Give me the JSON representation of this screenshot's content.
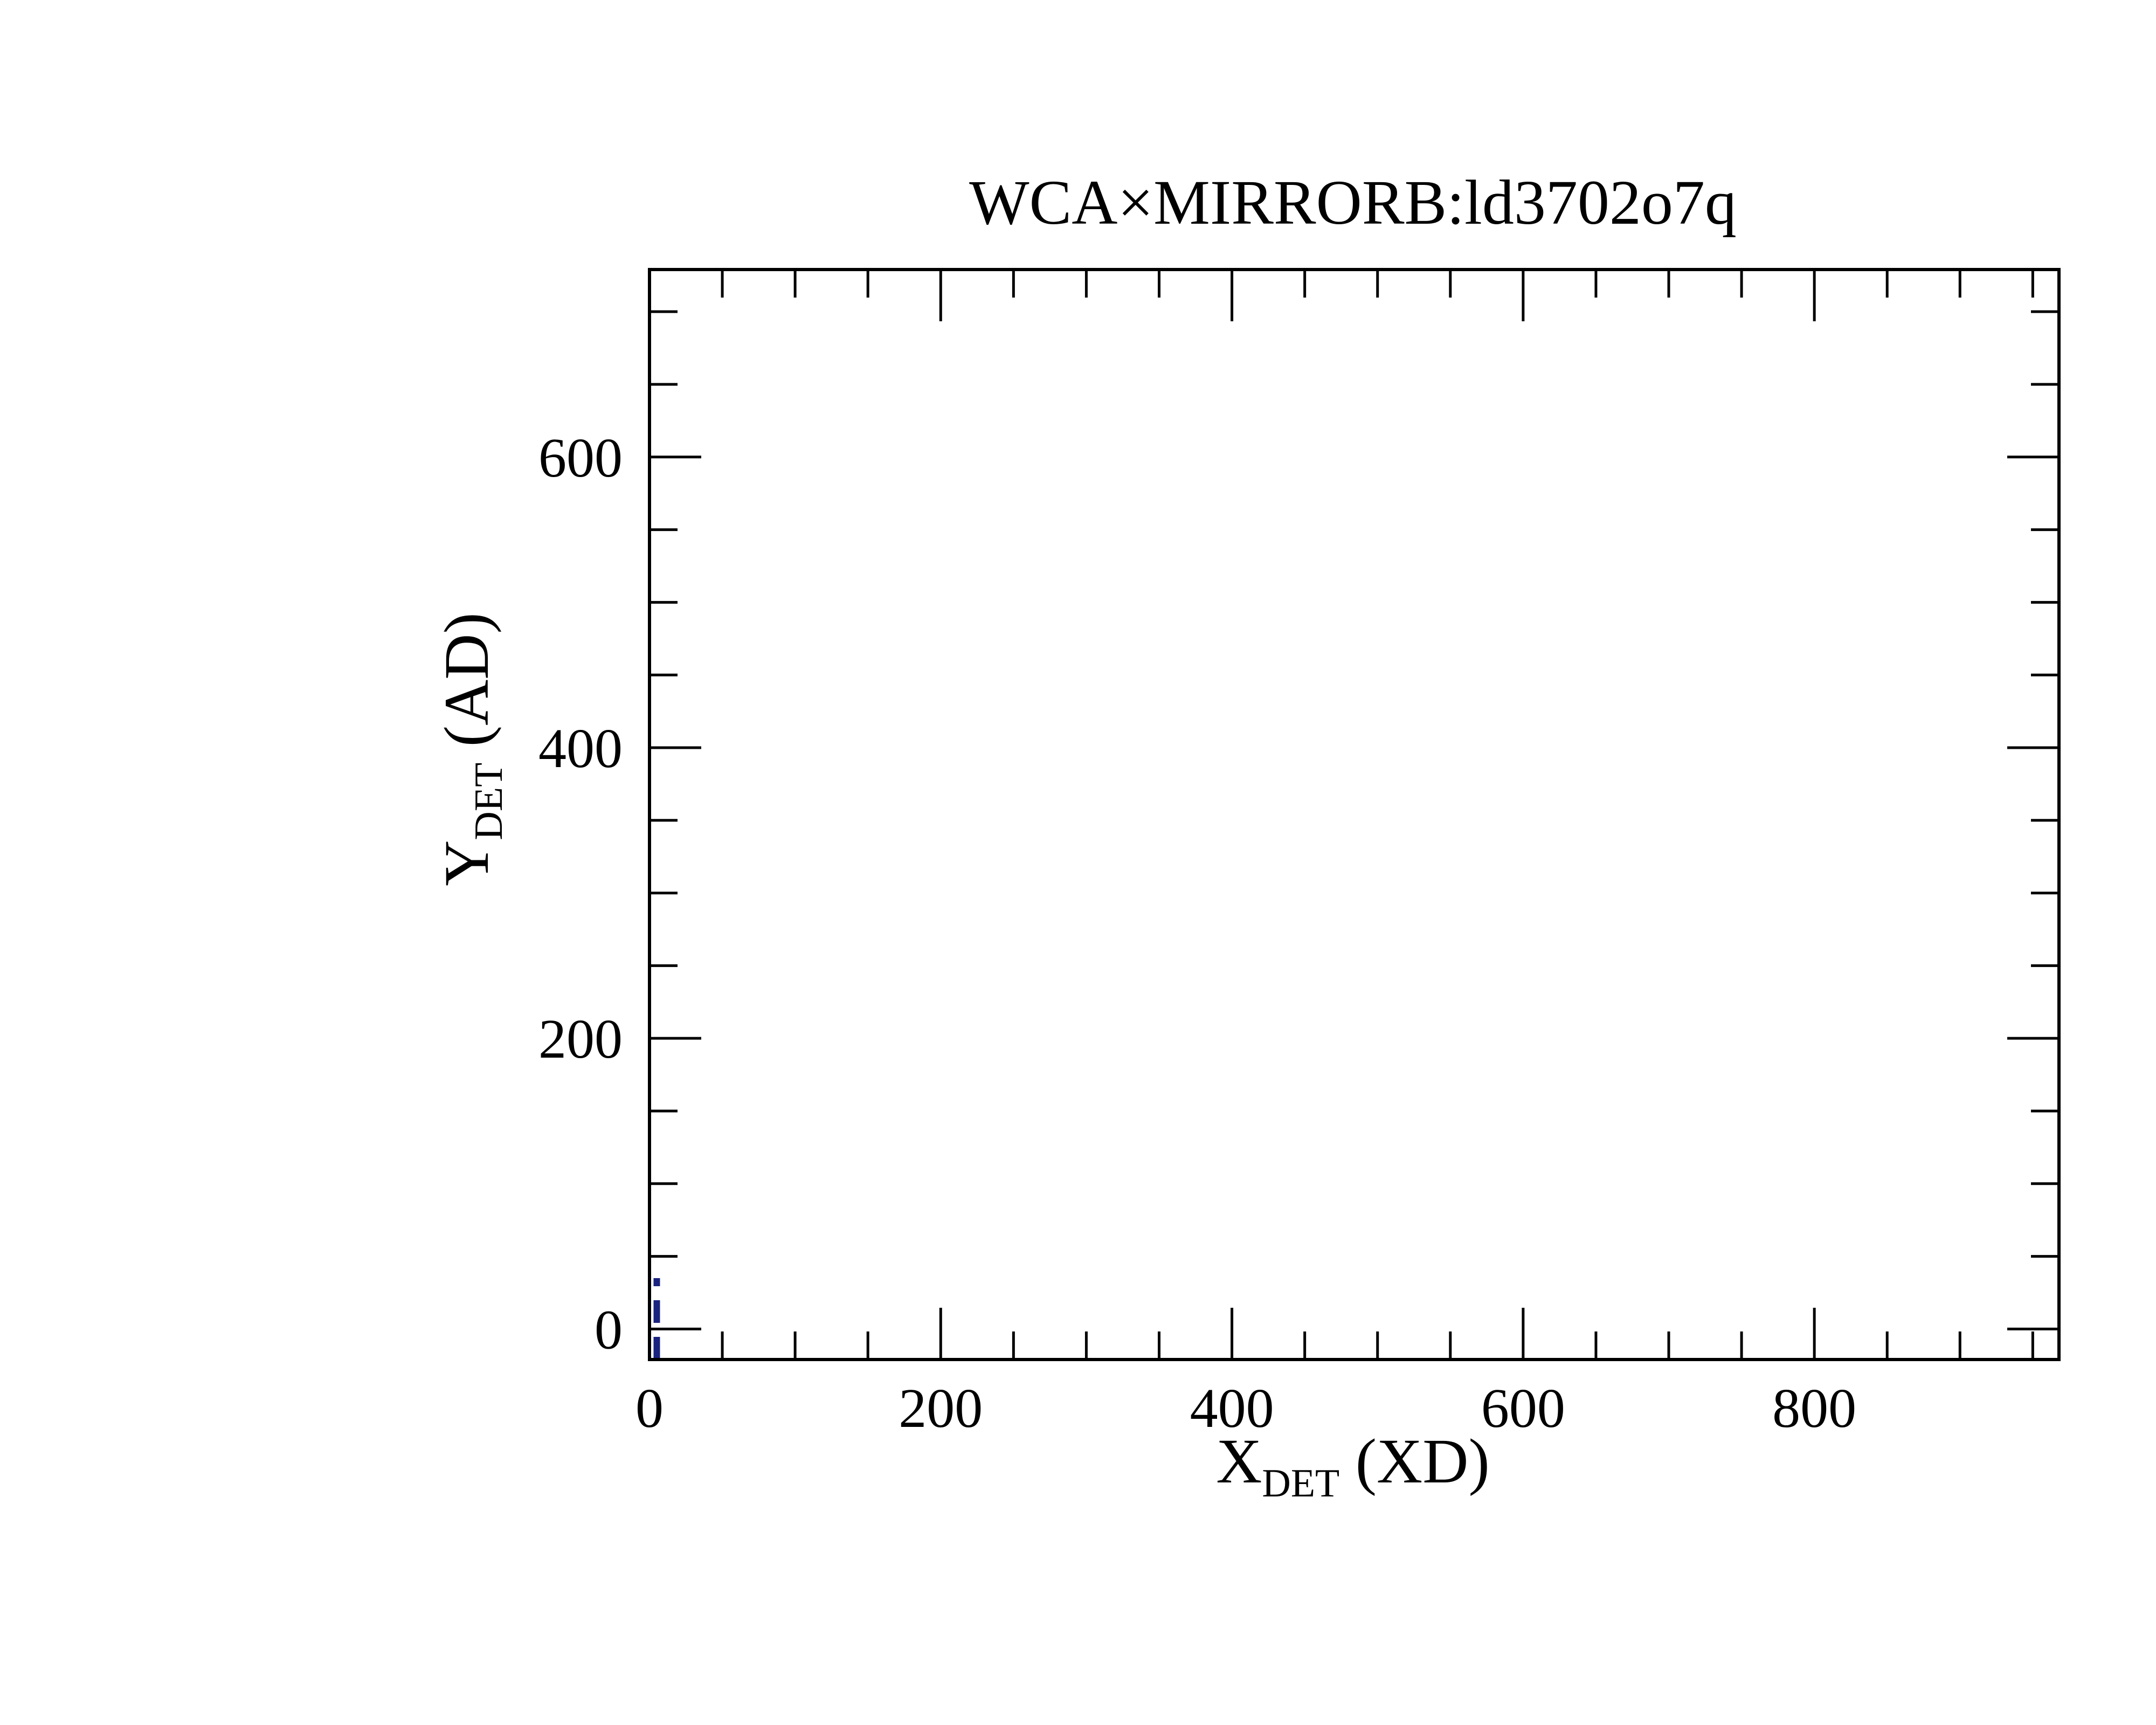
{
  "chart_data": {
    "type": "line",
    "title": "WCA×MIRRORB:ld3702o7q",
    "xlabel": {
      "main": "X",
      "subscript": "DET",
      "suffix": " (XD)"
    },
    "ylabel": {
      "main": "Y",
      "subscript": "DET",
      "suffix": " (AD)"
    },
    "xlim": [
      0,
      968
    ],
    "ylim": [
      -21,
      729
    ],
    "x_ticks": [
      0,
      200,
      400,
      600,
      800
    ],
    "x_tick_labels": [
      "0",
      "200",
      "400",
      "600",
      "800"
    ],
    "y_ticks": [
      0,
      200,
      400,
      600
    ],
    "y_tick_labels": [
      "0",
      "200",
      "400",
      "600"
    ],
    "x_minor_step": 50,
    "y_minor_step": 50,
    "grid": false,
    "series": [
      {
        "line_style": "dashed",
        "color": "#1a237e",
        "x": [
          5,
          5
        ],
        "y": [
          -21,
          35
        ]
      }
    ]
  }
}
